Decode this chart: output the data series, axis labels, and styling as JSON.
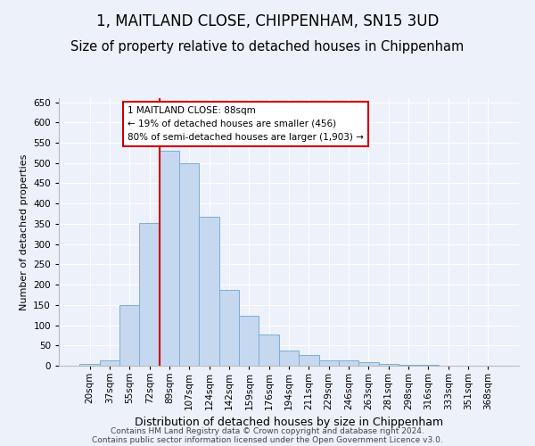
{
  "title": "1, MAITLAND CLOSE, CHIPPENHAM, SN15 3UD",
  "subtitle": "Size of property relative to detached houses in Chippenham",
  "xlabel": "Distribution of detached houses by size in Chippenham",
  "ylabel": "Number of detached properties",
  "categories": [
    "20sqm",
    "37sqm",
    "55sqm",
    "72sqm",
    "89sqm",
    "107sqm",
    "124sqm",
    "142sqm",
    "159sqm",
    "176sqm",
    "194sqm",
    "211sqm",
    "229sqm",
    "246sqm",
    "263sqm",
    "281sqm",
    "298sqm",
    "316sqm",
    "333sqm",
    "351sqm",
    "368sqm"
  ],
  "values": [
    5,
    13,
    150,
    353,
    530,
    500,
    367,
    188,
    123,
    76,
    38,
    26,
    13,
    13,
    8,
    5,
    3,
    2,
    1,
    1,
    1
  ],
  "bar_color": "#c5d8f0",
  "bar_edge_color": "#7aafd4",
  "vline_color": "#cc0000",
  "annotation_line1": "1 MAITLAND CLOSE: 88sqm",
  "annotation_line2": "← 19% of detached houses are smaller (456)",
  "annotation_line3": "80% of semi-detached houses are larger (1,903) →",
  "annotation_box_facecolor": "#ffffff",
  "annotation_box_edgecolor": "#cc0000",
  "ylim": [
    0,
    660
  ],
  "yticks": [
    0,
    50,
    100,
    150,
    200,
    250,
    300,
    350,
    400,
    450,
    500,
    550,
    600,
    650
  ],
  "background_color": "#edf1f9",
  "grid_color": "#ffffff",
  "title_fontsize": 12,
  "subtitle_fontsize": 10.5,
  "ylabel_fontsize": 8,
  "xlabel_fontsize": 9,
  "tick_fontsize": 7.5,
  "footnote1": "Contains HM Land Registry data © Crown copyright and database right 2024.",
  "footnote2": "Contains public sector information licensed under the Open Government Licence v3.0.",
  "footnote_fontsize": 6.5
}
